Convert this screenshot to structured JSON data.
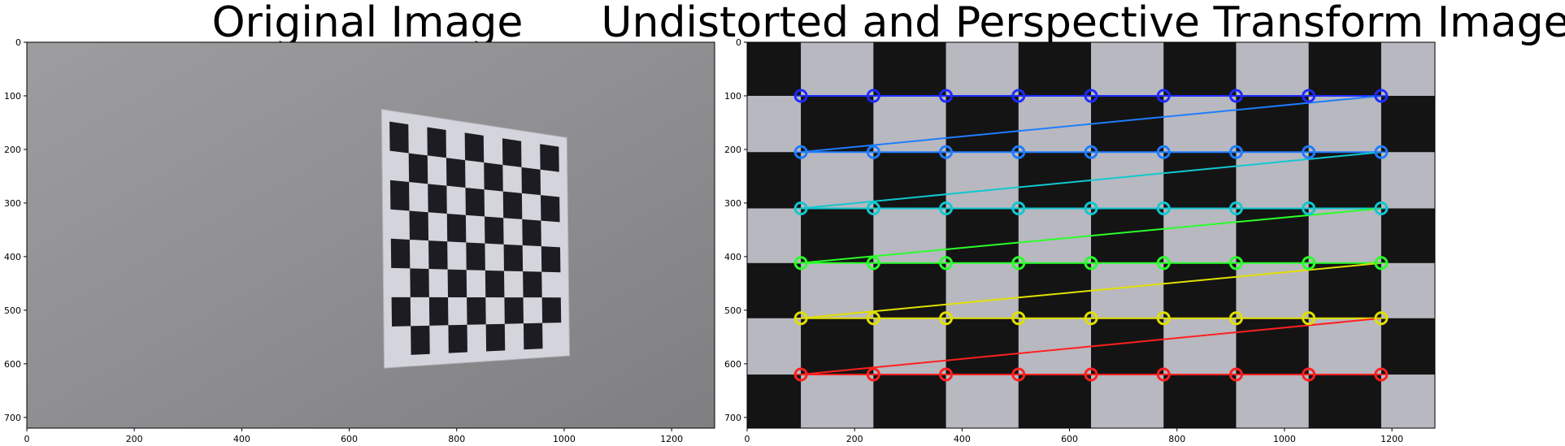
{
  "panels": [
    {
      "title": "Original Image",
      "image": "photo of a wall with a printed checkerboard pattern seen at an angle",
      "chart_data": {
        "type": "image",
        "xlim": [
          0,
          1280
        ],
        "ylim": [
          720,
          0
        ],
        "xticks": [
          0,
          200,
          400,
          600,
          800,
          1000,
          1200
        ],
        "yticks": [
          0,
          100,
          200,
          300,
          400,
          500,
          600,
          700
        ]
      }
    },
    {
      "title": "Undistorted and Perspective Transform Image",
      "image": "rectified checkerboard with detected chessboard corners",
      "chart_data": {
        "type": "image",
        "xlim": [
          0,
          1280
        ],
        "ylim": [
          720,
          0
        ],
        "xticks": [
          0,
          200,
          400,
          600,
          800,
          1000,
          1200
        ],
        "yticks": [
          0,
          100,
          200,
          300,
          400,
          500,
          600,
          700
        ],
        "corners_x": [
          100,
          235,
          370,
          505,
          640,
          775,
          910,
          1045,
          1180
        ],
        "corners_y": [
          100,
          205,
          310,
          412,
          515,
          620
        ],
        "row_colors": [
          "#1e2bff",
          "#1e7dff",
          "#10c8d0",
          "#2aff2a",
          "#e0e000",
          "#ff2020"
        ],
        "colors": {
          "light": "#b8b8c0",
          "dark": "#141414"
        }
      }
    }
  ]
}
